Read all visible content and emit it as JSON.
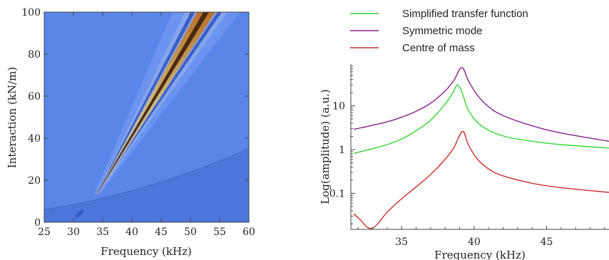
{
  "chart_data": [
    {
      "type": "heatmap",
      "title": "",
      "xlabel": "Frequency (kHz)",
      "ylabel": "Interaction (kN/m)",
      "xlim": [
        25,
        60
      ],
      "ylim": [
        0,
        100
      ],
      "xticks": [
        "25",
        "30",
        "35",
        "40",
        "45",
        "50",
        "55",
        "60"
      ],
      "yticks": [
        "0",
        "20",
        "40",
        "60",
        "80",
        "100"
      ],
      "background_color": "#5a86ea",
      "features": [
        {
          "kind": "resonance-ridge",
          "from": [
            34,
            14
          ],
          "to": [
            53,
            100
          ]
        },
        {
          "kind": "dim-curve",
          "from": [
            25,
            6
          ],
          "to": [
            60,
            35
          ]
        },
        {
          "kind": "spot",
          "at": [
            31,
            4
          ]
        }
      ]
    },
    {
      "type": "line",
      "title": "",
      "xlabel": "Frequency (kHz)",
      "ylabel": "Log(amplitude) (a.u.)",
      "xlim": [
        31.5,
        49.3
      ],
      "ylim": [
        0.015,
        90
      ],
      "yscale": "log",
      "xticks": [
        "35",
        "40",
        "45"
      ],
      "yticks": [
        "0.1",
        "1",
        "10"
      ],
      "legend_position": "top",
      "series": [
        {
          "name": "Simplified transfer function",
          "color": "#33d633",
          "x": [
            31.7,
            33,
            34,
            35,
            36,
            37,
            38,
            38.5,
            38.85,
            39.2,
            39.6,
            40.5,
            42,
            44,
            46,
            49.3
          ],
          "y": [
            0.82,
            1.05,
            1.3,
            1.75,
            2.7,
            4.7,
            11,
            19,
            30,
            19,
            8,
            3.5,
            2.05,
            1.55,
            1.3,
            1.08
          ]
        },
        {
          "name": "Symmetric mode",
          "color": "#8a2190",
          "x": [
            31.7,
            33,
            34,
            35,
            36,
            37,
            38,
            38.6,
            39.15,
            39.6,
            40.2,
            41,
            42,
            44,
            46,
            49.3
          ],
          "y": [
            2.9,
            3.6,
            4.3,
            5.5,
            7.5,
            11.5,
            22,
            38,
            75,
            38,
            18,
            9.5,
            6,
            3.5,
            2.4,
            1.55
          ]
        },
        {
          "name": "Centre of mass",
          "color": "#cc2e2e",
          "x": [
            31.7,
            32.2,
            32.6,
            33.0,
            33.4,
            34,
            35,
            36,
            37,
            38,
            38.6,
            39.2,
            39.6,
            40.2,
            41,
            42,
            44,
            46,
            49.3
          ],
          "y": [
            0.034,
            0.024,
            0.017,
            0.016,
            0.021,
            0.037,
            0.075,
            0.14,
            0.27,
            0.6,
            1.1,
            2.6,
            1.3,
            0.62,
            0.36,
            0.25,
            0.17,
            0.135,
            0.105
          ]
        }
      ]
    }
  ]
}
